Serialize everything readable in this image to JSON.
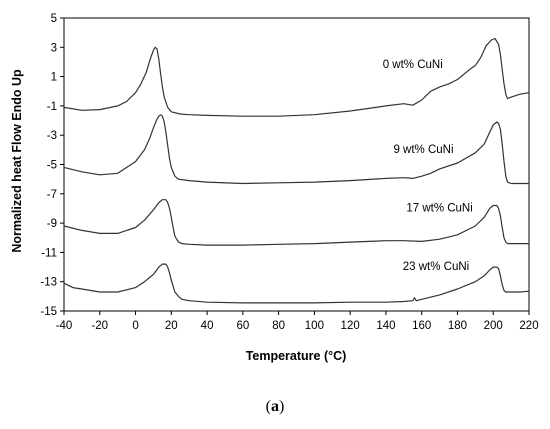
{
  "caption": {
    "open": "(",
    "letter": "a",
    "close": ")"
  },
  "chart_data": {
    "type": "line",
    "title": "",
    "xlabel": "Temperature (°C)",
    "ylabel": "Normalized heat Flow Endo Up",
    "xlim": [
      -40,
      220
    ],
    "ylim": [
      -15,
      5
    ],
    "xticks": [
      -40,
      -20,
      0,
      20,
      40,
      60,
      80,
      100,
      120,
      140,
      160,
      180,
      200,
      220
    ],
    "yticks": [
      -15,
      -13,
      -11,
      -9,
      -7,
      -5,
      -3,
      -1,
      1,
      3,
      5
    ],
    "grid": false,
    "legend": "none",
    "line_color": "#333333",
    "series": [
      {
        "name": "0 wt% CuNi",
        "label_at": [
          155,
          1.6
        ],
        "x": [
          -40,
          -30,
          -20,
          -10,
          -5,
          0,
          3,
          6,
          8,
          10,
          11,
          12,
          13,
          14,
          15,
          16,
          18,
          20,
          25,
          30,
          40,
          60,
          80,
          100,
          120,
          140,
          150,
          155,
          160,
          165,
          170,
          175,
          180,
          185,
          188,
          190,
          193,
          196,
          199,
          201,
          203,
          204,
          205,
          206,
          207,
          208,
          210,
          215,
          220
        ],
        "y": [
          -1.1,
          -1.3,
          -1.25,
          -1.0,
          -0.7,
          -0.1,
          0.5,
          1.3,
          2.1,
          2.8,
          3.0,
          2.9,
          2.2,
          1.2,
          0.3,
          -0.4,
          -1.1,
          -1.4,
          -1.55,
          -1.6,
          -1.65,
          -1.7,
          -1.7,
          -1.6,
          -1.35,
          -1.0,
          -0.85,
          -0.95,
          -0.6,
          0.0,
          0.3,
          0.5,
          0.8,
          1.3,
          1.6,
          1.75,
          2.3,
          3.1,
          3.5,
          3.6,
          3.2,
          2.5,
          1.5,
          0.5,
          -0.2,
          -0.5,
          -0.4,
          -0.2,
          -0.1
        ]
      },
      {
        "name": "9 wt% CuNi",
        "label_at": [
          161,
          -4.2
        ],
        "x": [
          -40,
          -30,
          -20,
          -10,
          0,
          5,
          8,
          10,
          12,
          13,
          14,
          15,
          16,
          17,
          18,
          19,
          20,
          22,
          24,
          30,
          40,
          60,
          80,
          100,
          120,
          140,
          150,
          155,
          160,
          165,
          170,
          180,
          190,
          195,
          198,
          200,
          202,
          203,
          204,
          205,
          206,
          207,
          208,
          210,
          215,
          220
        ],
        "y": [
          -5.2,
          -5.5,
          -5.7,
          -5.6,
          -4.8,
          -4.0,
          -3.2,
          -2.5,
          -1.9,
          -1.7,
          -1.6,
          -1.7,
          -2.1,
          -2.8,
          -3.7,
          -4.6,
          -5.2,
          -5.8,
          -6.0,
          -6.1,
          -6.2,
          -6.3,
          -6.25,
          -6.2,
          -6.1,
          -5.95,
          -5.9,
          -5.95,
          -5.8,
          -5.6,
          -5.3,
          -4.9,
          -4.2,
          -3.6,
          -2.8,
          -2.3,
          -2.1,
          -2.2,
          -2.6,
          -3.6,
          -4.8,
          -5.8,
          -6.2,
          -6.3,
          -6.3,
          -6.3
        ]
      },
      {
        "name": "17 wt% CuNi",
        "label_at": [
          170,
          -8.2
        ],
        "x": [
          -40,
          -30,
          -20,
          -10,
          0,
          5,
          10,
          13,
          15,
          17,
          18,
          19,
          20,
          21,
          22,
          24,
          26,
          30,
          40,
          60,
          80,
          100,
          120,
          140,
          150,
          160,
          170,
          180,
          190,
          195,
          198,
          200,
          202,
          203,
          204,
          205,
          206,
          207,
          208,
          210,
          215,
          220
        ],
        "y": [
          -9.2,
          -9.5,
          -9.7,
          -9.7,
          -9.3,
          -8.8,
          -8.1,
          -7.6,
          -7.4,
          -7.4,
          -7.6,
          -8.0,
          -8.6,
          -9.3,
          -9.9,
          -10.3,
          -10.4,
          -10.45,
          -10.5,
          -10.5,
          -10.45,
          -10.4,
          -10.3,
          -10.2,
          -10.2,
          -10.25,
          -10.1,
          -9.8,
          -9.2,
          -8.6,
          -8.0,
          -7.8,
          -7.8,
          -8.0,
          -8.5,
          -9.3,
          -10.0,
          -10.3,
          -10.4,
          -10.4,
          -10.4,
          -10.4
        ]
      },
      {
        "name": "23 wt% CuNi",
        "label_at": [
          168,
          -12.2
        ],
        "x": [
          -40,
          -35,
          -30,
          -20,
          -10,
          0,
          5,
          10,
          13,
          15,
          17,
          18,
          19,
          20,
          21,
          22,
          24,
          26,
          30,
          40,
          60,
          80,
          100,
          120,
          140,
          150,
          155,
          156,
          157,
          160,
          170,
          180,
          190,
          195,
          198,
          200,
          202,
          203,
          204,
          205,
          206,
          207,
          208,
          210,
          215,
          220
        ],
        "y": [
          -13.1,
          -13.4,
          -13.5,
          -13.7,
          -13.7,
          -13.4,
          -13.0,
          -12.5,
          -12.0,
          -11.8,
          -11.8,
          -12.0,
          -12.4,
          -12.9,
          -13.3,
          -13.7,
          -14.0,
          -14.2,
          -14.3,
          -14.4,
          -14.45,
          -14.45,
          -14.45,
          -14.4,
          -14.4,
          -14.35,
          -14.3,
          -14.1,
          -14.3,
          -14.2,
          -13.9,
          -13.5,
          -13.0,
          -12.6,
          -12.2,
          -12.0,
          -12.0,
          -12.1,
          -12.6,
          -13.2,
          -13.6,
          -13.7,
          -13.7,
          -13.7,
          -13.7,
          -13.65
        ]
      }
    ]
  }
}
